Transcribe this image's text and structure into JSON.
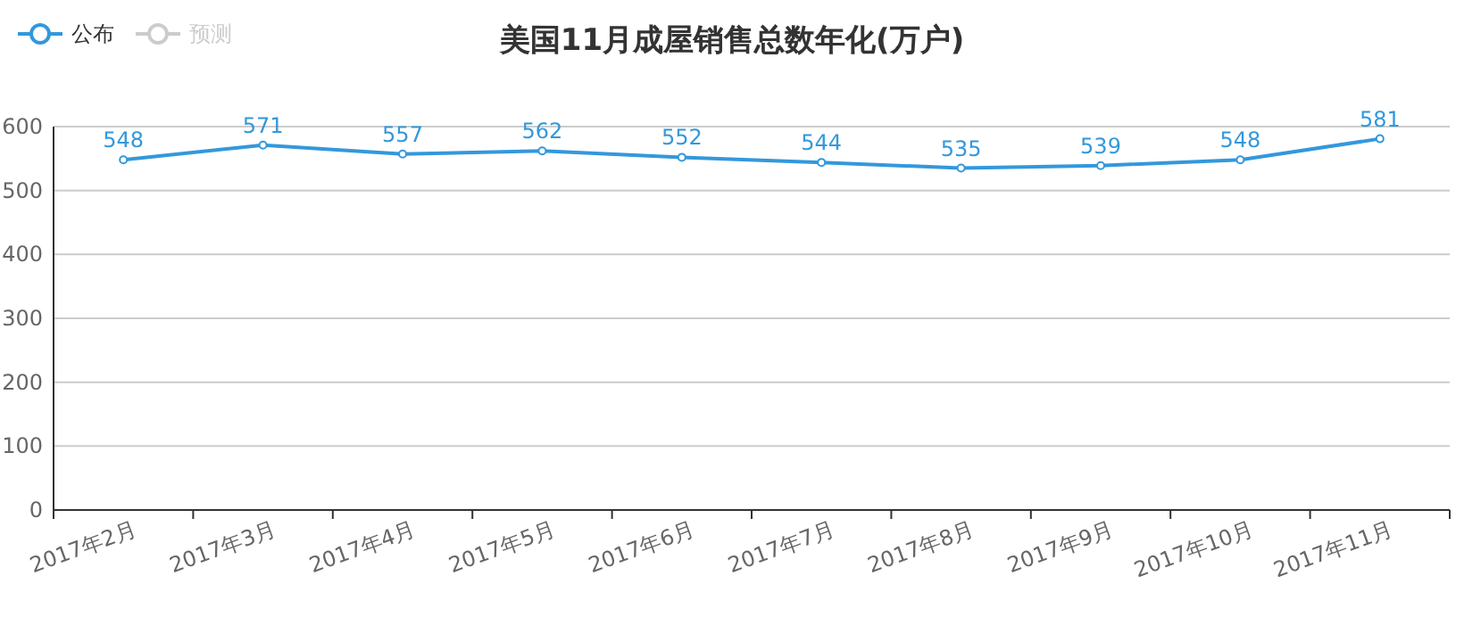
{
  "chart_data": {
    "type": "line",
    "title": "美国11月成屋销售总数年化(万户)",
    "categories": [
      "2017年2月",
      "2017年3月",
      "2017年4月",
      "2017年5月",
      "2017年6月",
      "2017年7月",
      "2017年8月",
      "2017年9月",
      "2017年10月",
      "2017年11月"
    ],
    "series": [
      {
        "name": "公布",
        "color": "#3398db",
        "values": [
          548,
          571,
          557,
          562,
          552,
          544,
          535,
          539,
          548,
          581
        ]
      },
      {
        "name": "预测",
        "color": "#cccccc",
        "values": [
          null,
          null,
          null,
          null,
          null,
          null,
          null,
          null,
          null,
          null
        ]
      }
    ],
    "ylim": [
      0,
      600
    ],
    "yticks": [
      0,
      100,
      200,
      300,
      400,
      500,
      600
    ],
    "grid": "y",
    "legend": "top left",
    "data_labels": true,
    "marker": "circle",
    "line_style": "solid"
  }
}
